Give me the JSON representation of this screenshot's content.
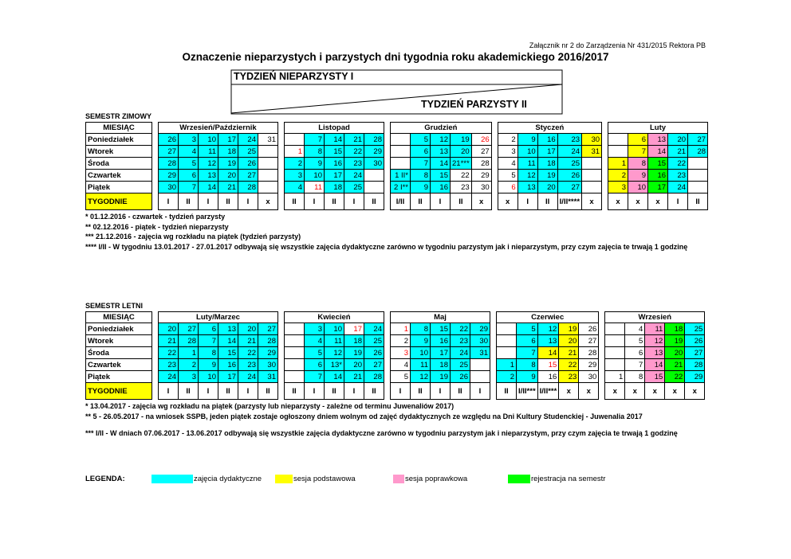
{
  "header": {
    "note": "Załącznik nr 2 do Zarządzenia Nr 431/2015 Rektora PB",
    "title": "Oznaczenie nieparzystych i parzystych dni tygodnia roku akademickiego 2016/2017",
    "odd_week": "TYDZIEŃ NIEPARZYSTY I",
    "even_week": "TYDZIEŃ PARZYSTY II"
  },
  "holiday_text_color": "#ff0000",
  "semesters": [
    {
      "name": "SEMESTR ZIMOWY",
      "month_label": "MIESIĄC",
      "days": [
        "Poniedziałek",
        "Wtorek",
        "Środa",
        "Czwartek",
        "Piątek"
      ],
      "weeks_label": "TYGODNIE",
      "months": [
        {
          "name": "Wrzesień/Październik",
          "weeks": [
            "I",
            "II",
            "I",
            "II",
            "I",
            "x"
          ],
          "rows": [
            [
              "26",
              "3",
              "10",
              "17",
              "24",
              "31"
            ],
            [
              "27",
              "4",
              "11",
              "18",
              "25",
              null
            ],
            [
              "28",
              "5",
              "12",
              "19",
              "26",
              null
            ],
            [
              "29",
              "6",
              "13",
              "20",
              "27",
              null
            ],
            [
              "30",
              "7",
              "14",
              "21",
              "28",
              null
            ]
          ],
          "fill": [
            "00000-",
            "00000-",
            "00000-",
            "00000-",
            "00000-"
          ]
        },
        {
          "name": "Listopad",
          "weeks": [
            "II",
            "I",
            "II",
            "I",
            "II"
          ],
          "rows": [
            [
              null,
              "7",
              "14",
              "21",
              "28"
            ],
            [
              "1",
              "8",
              "15",
              "22",
              "29"
            ],
            [
              "2",
              "9",
              "16",
              "23",
              "30"
            ],
            [
              "3",
              "10",
              "17",
              "24",
              null
            ],
            [
              "4",
              "11",
              "18",
              "25",
              null
            ]
          ],
          "fill": [
            "-0000",
            "r0000",
            "00000",
            "0000-",
            "0r00-"
          ]
        },
        {
          "name": "Grudzień",
          "weeks": [
            "I/II",
            "II",
            "I",
            "II",
            "x"
          ],
          "rows": [
            [
              null,
              "5",
              "12",
              "19",
              "26"
            ],
            [
              null,
              "6",
              "13",
              "20",
              "27"
            ],
            [
              null,
              "7",
              "14",
              "21***",
              "28"
            ],
            [
              "1 II*",
              "8",
              "15",
              "22",
              "29"
            ],
            [
              "2 I**",
              "9",
              "16",
              "23",
              "30"
            ]
          ],
          "fill": [
            "-000r",
            "-000-",
            "-000-",
            "000--",
            "000--"
          ]
        },
        {
          "name": "Styczeń",
          "weeks": [
            "x",
            "I",
            "II",
            "I/II****",
            "x"
          ],
          "rows": [
            [
              "2",
              "9",
              "16",
              "23",
              "30"
            ],
            [
              "3",
              "10",
              "17",
              "24",
              "31"
            ],
            [
              "4",
              "11",
              "18",
              "25",
              null
            ],
            [
              "5",
              "12",
              "19",
              "26",
              null
            ],
            [
              "6",
              "13",
              "20",
              "27",
              null
            ]
          ],
          "fill": [
            "-0001",
            "-0001",
            "-000-",
            "-000-",
            "r000-"
          ]
        },
        {
          "name": "Luty",
          "weeks": [
            "x",
            "x",
            "x",
            "I",
            "II"
          ],
          "rows": [
            [
              null,
              "6",
              "13",
              "20",
              "27"
            ],
            [
              null,
              "7",
              "14",
              "21",
              "28"
            ],
            [
              "1",
              "8",
              "15",
              "22",
              null
            ],
            [
              "2",
              "9",
              "16",
              "23",
              null
            ],
            [
              "3",
              "10",
              "17",
              "24",
              null
            ]
          ],
          "fill": [
            "-1200",
            "-1200",
            "1230-",
            "1230-",
            "1230-"
          ]
        }
      ],
      "notes": [
        "* 01.12.2016 - czwartek - tydzień parzysty",
        "** 02.12.2016 - piątek - tydzień nieparzysty",
        "*** 21.12.2016 - zajęcia wg rozkładu na piątek (tydzień parzysty)",
        "**** I/II - W tygodniu 13.01.2017 - 27.01.2017 odbywają się wszystkie zajęcia dydaktyczne zarówno w tygodniu parzystym jak i nieparzystym, przy czym zajęcia te trwają 1 godzinę"
      ]
    },
    {
      "name": "SEMESTR LETNI",
      "month_label": "MIESIĄC",
      "days": [
        "Poniedziałek",
        "Wtorek",
        "Środa",
        "Czwartek",
        "Piątek"
      ],
      "weeks_label": "TYGODNIE",
      "months": [
        {
          "name": "Luty/Marzec",
          "weeks": [
            "I",
            "II",
            "I",
            "II",
            "I",
            "II"
          ],
          "rows": [
            [
              "20",
              "27",
              "6",
              "13",
              "20",
              "27"
            ],
            [
              "21",
              "28",
              "7",
              "14",
              "21",
              "28"
            ],
            [
              "22",
              "1",
              "8",
              "15",
              "22",
              "29"
            ],
            [
              "23",
              "2",
              "9",
              "16",
              "23",
              "30"
            ],
            [
              "24",
              "3",
              "10",
              "17",
              "24",
              "31"
            ]
          ],
          "fill": [
            "000000",
            "000000",
            "000000",
            "000000",
            "000000"
          ]
        },
        {
          "name": "Kwiecień",
          "weeks": [
            "II",
            "I",
            "II",
            "I",
            "II"
          ],
          "rows": [
            [
              null,
              "3",
              "10",
              "17",
              "24"
            ],
            [
              null,
              "4",
              "11",
              "18",
              "25"
            ],
            [
              null,
              "5",
              "12",
              "19",
              "26"
            ],
            [
              null,
              "6",
              "13*",
              "20",
              "27"
            ],
            [
              null,
              "7",
              "14",
              "21",
              "28"
            ]
          ],
          "fill": [
            "-00r0",
            "-0000",
            "-0000",
            "-0000",
            "-0000"
          ]
        },
        {
          "name": "Maj",
          "weeks": [
            "I",
            "II",
            "I",
            "II",
            "I"
          ],
          "rows": [
            [
              "1",
              "8",
              "15",
              "22",
              "29"
            ],
            [
              "2",
              "9",
              "16",
              "23",
              "30"
            ],
            [
              "3",
              "10",
              "17",
              "24",
              "31"
            ],
            [
              "4",
              "11",
              "18",
              "25",
              null
            ],
            [
              "5",
              "12",
              "19",
              "26",
              null
            ]
          ],
          "fill": [
            "r0000",
            "-0000",
            "r0000",
            "-000-",
            "-000-"
          ]
        },
        {
          "name": "Czerwiec",
          "weeks": [
            "II",
            "I/II***",
            "I/II***",
            "x",
            "x"
          ],
          "rows": [
            [
              null,
              "5",
              "12",
              "19",
              "26"
            ],
            [
              null,
              "6",
              "13",
              "20",
              "27"
            ],
            [
              null,
              "7",
              "14",
              "21",
              "28"
            ],
            [
              "1",
              "8",
              "15",
              "22",
              "29"
            ],
            [
              "2",
              "9",
              "16",
              "23",
              "30"
            ]
          ],
          "fill": [
            "-001-",
            "-001-",
            "-011-",
            "00r1-",
            "00-1-"
          ]
        },
        {
          "name": "Wrzesień",
          "weeks": [
            "x",
            "x",
            "x",
            "x",
            "x"
          ],
          "rows": [
            [
              null,
              "4",
              "11",
              "18",
              "25"
            ],
            [
              null,
              "5",
              "12",
              "19",
              "26"
            ],
            [
              null,
              "6",
              "13",
              "20",
              "27"
            ],
            [
              null,
              "7",
              "14",
              "21",
              "28"
            ],
            [
              "1",
              "8",
              "15",
              "22",
              "29"
            ]
          ],
          "fill": [
            "--230",
            "--230",
            "--230",
            "--230",
            "--230"
          ]
        }
      ],
      "notes": [
        "* 13.04.2017 - zajęcia wg rozkładu na piątek (parzysty lub nieparzysty - zależne od terminu Juwenaliów 2017)",
        "** 5 - 26.05.2017 - na wniosek SSPB, jeden piątek zostaje ogłoszony dniem wolnym od zajęć dydaktycznych ze względu na Dni Kultury Studenckiej - Juwenalia 2017",
        "*** I/II - W dniach 07.06.2017 - 13.06.2017 odbywają się wszystkie zajęcia dydaktyczne zarówno w tygodniu parzystym jak i nieparzystym, przy czym zajęcia te trwają 1 godzinę"
      ]
    }
  ],
  "legend": {
    "title": "LEGENDA:",
    "items": [
      {
        "label": "zajęcia dydaktyczne",
        "color": "#00ffff"
      },
      {
        "label": "sesja podstawowa",
        "color": "#ffff00"
      },
      {
        "label": "sesja poprawkowa",
        "color": "#ff99cc"
      },
      {
        "label": "rejestracja na semestr",
        "color": "#00ff00"
      }
    ]
  }
}
